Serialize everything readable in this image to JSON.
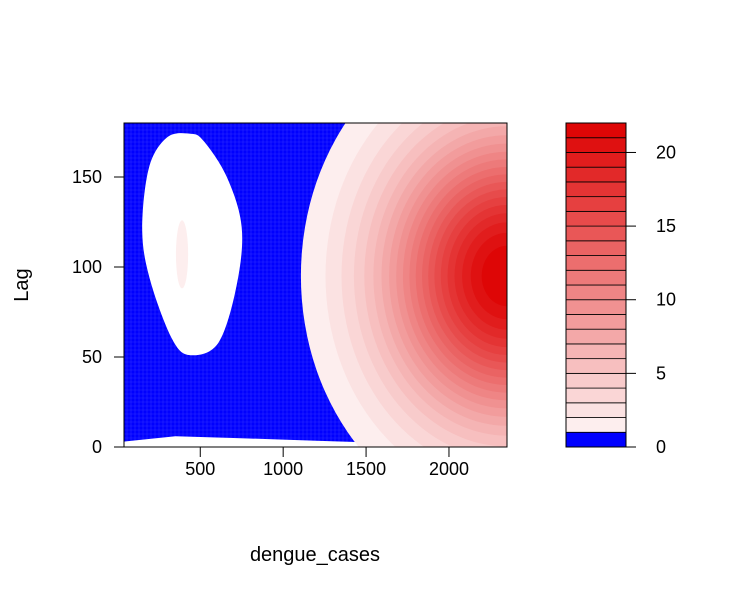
{
  "chart_data": {
    "type": "heatmap",
    "subtype": "filled-contour",
    "xlabel": "dengue_cases",
    "ylabel": "Lag",
    "xlim": [
      40,
      2350
    ],
    "ylim": [
      0,
      180
    ],
    "x_ticks": [
      500,
      1000,
      1500,
      2000
    ],
    "x_tick_labels": [
      "500",
      "1000",
      "1500",
      "2000"
    ],
    "y_ticks": [
      0,
      50,
      100,
      150
    ],
    "y_tick_labels": [
      "0",
      "50",
      "100",
      "150"
    ],
    "regions": {
      "white_left_blob": [
        [
          440,
          174
        ],
        [
          520,
          170
        ],
        [
          660,
          150
        ],
        [
          750,
          122
        ],
        [
          720,
          90
        ],
        [
          610,
          58
        ],
        [
          440,
          51
        ],
        [
          330,
          60
        ],
        [
          200,
          92
        ],
        [
          150,
          120
        ],
        [
          190,
          155
        ],
        [
          300,
          172
        ]
      ],
      "white_right_region": [
        [
          2350,
          26
        ],
        [
          2200,
          35
        ],
        [
          1950,
          50
        ],
        [
          1700,
          75
        ],
        [
          1520,
          95
        ],
        [
          1420,
          115
        ],
        [
          1440,
          138
        ],
        [
          1620,
          153
        ],
        [
          1900,
          163
        ],
        [
          2120,
          169
        ],
        [
          2220,
          171
        ],
        [
          2270,
          172
        ],
        [
          2240,
          174
        ],
        [
          2100,
          176
        ],
        [
          1900,
          178
        ],
        [
          1700,
          180
        ],
        [
          2350,
          180
        ]
      ],
      "white_bottom_strip": [
        [
          40,
          3
        ],
        [
          350,
          6
        ],
        [
          700,
          5
        ],
        [
          1200,
          3.5
        ],
        [
          1700,
          2
        ],
        [
          2350,
          0
        ],
        [
          40,
          0
        ]
      ]
    },
    "hotspots": [
      {
        "x": 2350,
        "y": 95,
        "peak": 22,
        "spread_x": 500,
        "spread_y": 55
      },
      {
        "x": 390,
        "y": 107,
        "peak": 1.4,
        "spread_x": 45,
        "spread_y": 23
      }
    ],
    "legend": {
      "placement": "right",
      "min": 0,
      "max": 22,
      "levels": [
        0,
        1,
        2,
        3,
        4,
        5,
        6,
        7,
        8,
        9,
        10,
        11,
        12,
        13,
        14,
        15,
        16,
        17,
        18,
        19,
        20,
        21,
        22
      ],
      "tick_values": [
        0,
        5,
        10,
        15,
        20
      ],
      "tick_labels": [
        "0",
        "5",
        "10",
        "15",
        "20"
      ],
      "low_color": "#0000FF",
      "high_color": "#DD0000"
    },
    "grid": false
  }
}
